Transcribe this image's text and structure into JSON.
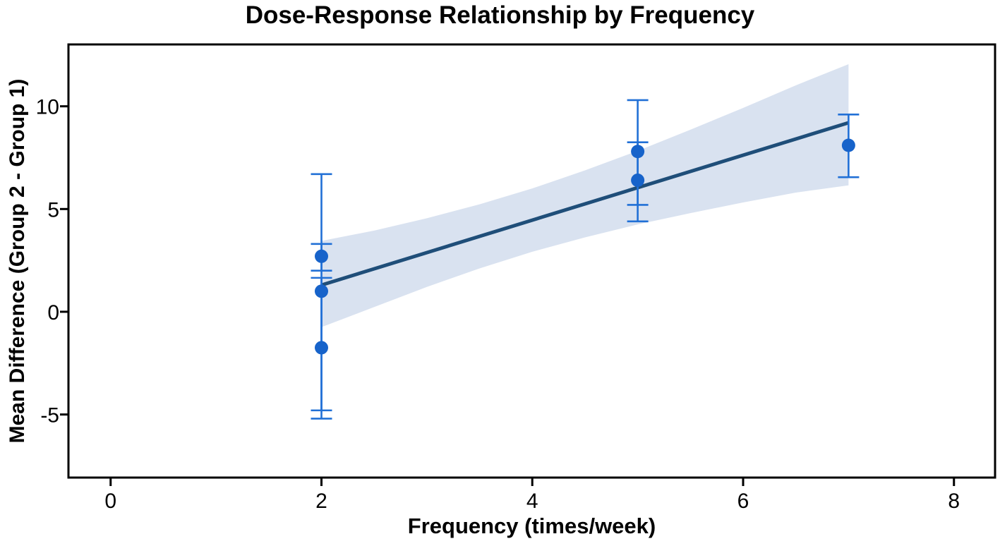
{
  "chart_data": {
    "type": "scatter",
    "title": "Dose-Response Relationship by Frequency",
    "xlabel": "Frequency (times/week)",
    "ylabel": "Mean Difference (Group 2 - Group 1)",
    "xlim": [
      -0.4,
      8.39
    ],
    "ylim": [
      -8.07,
      13.01
    ],
    "xticks": [
      0,
      2,
      4,
      6,
      8
    ],
    "yticks": [
      -5,
      0,
      5,
      10
    ],
    "grid": false,
    "legend": null,
    "points": [
      {
        "x": 2,
        "y": 2.7,
        "ci_low": 2.0,
        "ci_high": 3.3
      },
      {
        "x": 2,
        "y": 1.0,
        "ci_low": -4.8,
        "ci_high": 6.7
      },
      {
        "x": 2,
        "y": -1.75,
        "ci_low": -5.2,
        "ci_high": 1.65
      },
      {
        "x": 5,
        "y": 7.8,
        "ci_low": 5.2,
        "ci_high": 10.3
      },
      {
        "x": 5,
        "y": 6.4,
        "ci_low": 4.4,
        "ci_high": 8.25
      },
      {
        "x": 7,
        "y": 8.1,
        "ci_low": 6.55,
        "ci_high": 9.6
      }
    ],
    "regression_line": {
      "x": [
        2,
        7
      ],
      "y": [
        1.3,
        9.2
      ]
    },
    "confidence_band": {
      "x": [
        2.0,
        2.5,
        3.0,
        3.5,
        4.0,
        4.5,
        5.0,
        5.5,
        6.0,
        6.5,
        7.0
      ],
      "low": [
        -0.75,
        0.23,
        1.21,
        2.11,
        2.92,
        3.62,
        4.25,
        4.8,
        5.32,
        5.8,
        6.15
      ],
      "high": [
        3.45,
        3.95,
        4.55,
        5.23,
        6.0,
        6.88,
        7.83,
        8.86,
        9.92,
        11.02,
        12.05
      ]
    },
    "colors": {
      "point": "#1763ca",
      "errorbar": "#2170d6",
      "regression_line": "#1f4e79",
      "confidence_band": "#d9e2f0",
      "frame": "#000000",
      "text": "#000000",
      "background": "#ffffff"
    }
  }
}
